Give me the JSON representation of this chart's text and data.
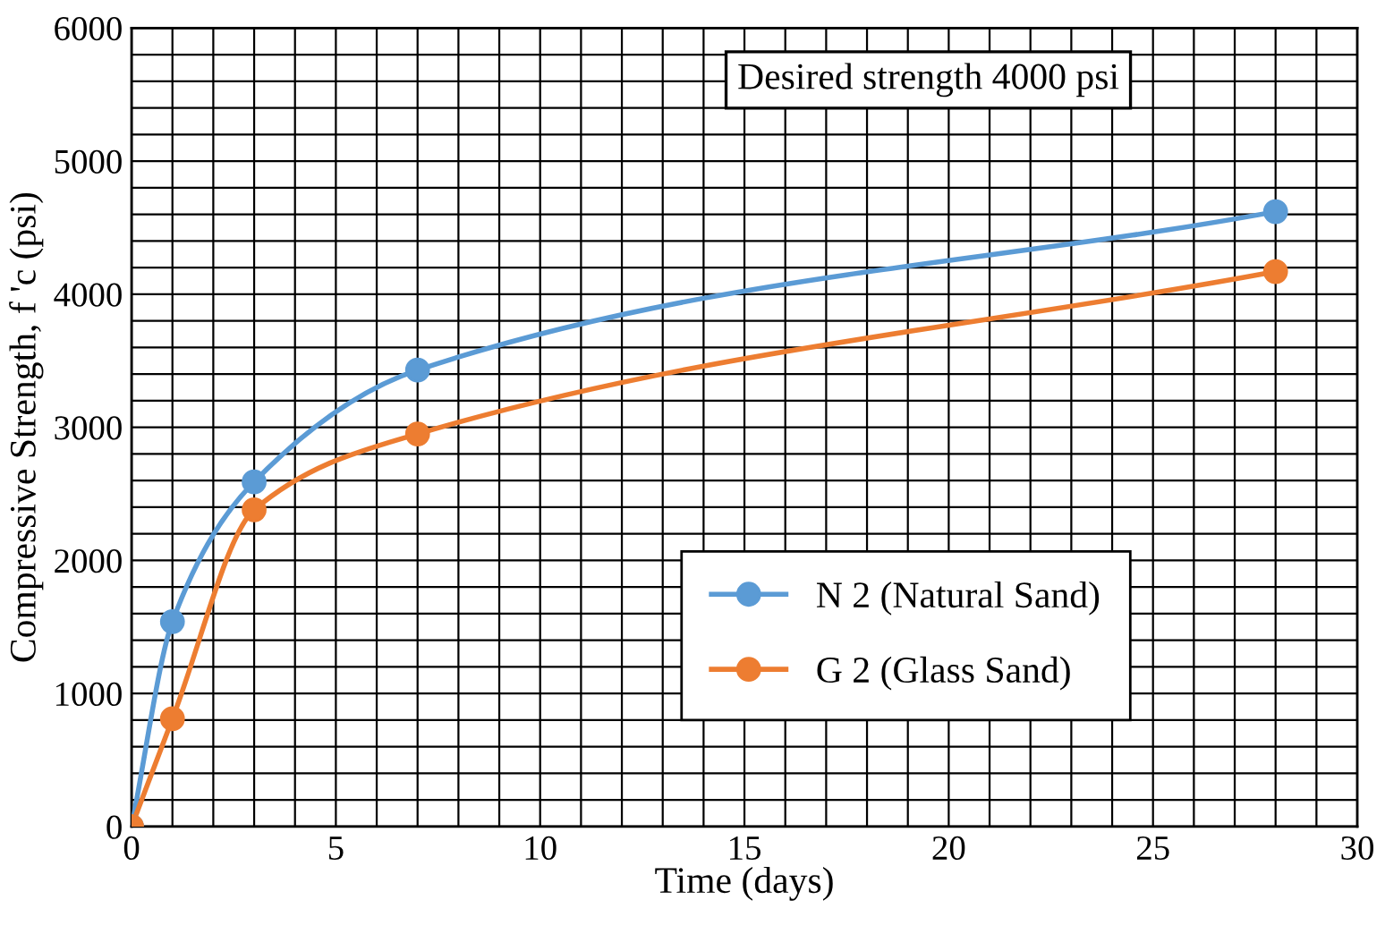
{
  "chart_data": {
    "type": "line",
    "xlabel": "Time (days)",
    "ylabel": "Compressive Strength, f 'c (psi)",
    "annotations": [
      "Desired strength 4000 psi"
    ],
    "series": [
      {
        "name": "N 2 (Natural Sand)",
        "color": "#5b9bd5",
        "x": [
          0,
          1,
          3,
          7,
          28
        ],
        "values": [
          0,
          1540,
          2590,
          3430,
          4620
        ]
      },
      {
        "name": "G 2 (Glass Sand)",
        "color": "#ed7d31",
        "x": [
          0,
          1,
          3,
          7,
          28
        ],
        "values": [
          0,
          810,
          2380,
          2950,
          4170
        ]
      }
    ],
    "xlim": [
      0,
      30
    ],
    "ylim": [
      0,
      6000
    ],
    "xticks": [
      0,
      {
        "value": 1,
        "label": null
      },
      {
        "value": 2,
        "label": null
      },
      {
        "value": 3,
        "label": null
      },
      {
        "value": 4,
        "label": null
      },
      5,
      {
        "value": 6,
        "label": null
      },
      {
        "value": 7,
        "label": null
      },
      {
        "value": 8,
        "label": null
      },
      {
        "value": 9,
        "label": null
      },
      10,
      {
        "value": 11,
        "label": null
      },
      {
        "value": 12,
        "label": null
      },
      {
        "value": 13,
        "label": null
      },
      {
        "value": 14,
        "label": null
      },
      15,
      {
        "value": 16,
        "label": null
      },
      {
        "value": 17,
        "label": null
      },
      {
        "value": 18,
        "label": null
      },
      {
        "value": 19,
        "label": null
      },
      20,
      {
        "value": 21,
        "label": null
      },
      {
        "value": 22,
        "label": null
      },
      {
        "value": 23,
        "label": null
      },
      {
        "value": 24,
        "label": null
      },
      25,
      {
        "value": 26,
        "label": null
      },
      {
        "value": 27,
        "label": null
      },
      {
        "value": 28,
        "label": null
      },
      {
        "value": 29,
        "label": null
      },
      30
    ],
    "yticks": [
      0,
      {
        "value": 200,
        "label": null
      },
      {
        "value": 400,
        "label": null
      },
      {
        "value": 600,
        "label": null
      },
      {
        "value": 800,
        "label": null
      },
      1000,
      {
        "value": 1200,
        "label": null
      },
      {
        "value": 1400,
        "label": null
      },
      {
        "value": 1600,
        "label": null
      },
      {
        "value": 1800,
        "label": null
      },
      2000,
      {
        "value": 2200,
        "label": null
      },
      {
        "value": 2400,
        "label": null
      },
      {
        "value": 2600,
        "label": null
      },
      {
        "value": 2800,
        "label": null
      },
      3000,
      {
        "value": 3200,
        "label": null
      },
      {
        "value": 3400,
        "label": null
      },
      {
        "value": 3600,
        "label": null
      },
      {
        "value": 3800,
        "label": null
      },
      4000,
      {
        "value": 4200,
        "label": null
      },
      {
        "value": 4400,
        "label": null
      },
      {
        "value": 4600,
        "label": null
      },
      {
        "value": 4800,
        "label": null
      },
      5000,
      {
        "value": 5200,
        "label": null
      },
      {
        "value": 5400,
        "label": null
      },
      {
        "value": 5600,
        "label": null
      },
      {
        "value": 5800,
        "label": null
      },
      6000
    ],
    "grid": true,
    "legend": "bottom right",
    "marker": "circle",
    "line_style": "solid"
  }
}
